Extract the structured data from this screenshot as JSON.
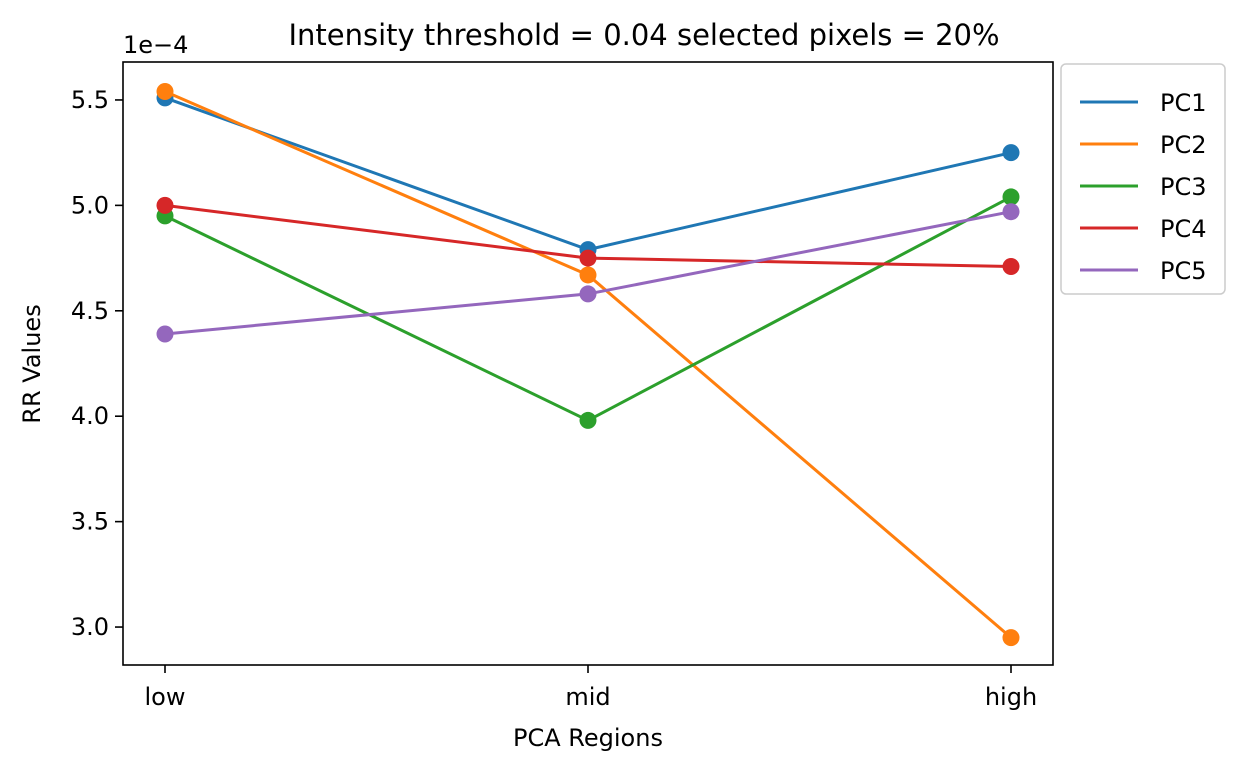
{
  "chart_data": {
    "type": "line",
    "title": "Intensity threshold = 0.04 selected pixels = 20%",
    "xlabel": "PCA Regions",
    "ylabel": "RR Values",
    "y_offset_label": "1e−4",
    "categories": [
      "low",
      "mid",
      "high"
    ],
    "ylim": [
      2.82,
      5.68
    ],
    "yticks": [
      3.0,
      3.5,
      4.0,
      4.5,
      5.0,
      5.5
    ],
    "ytick_labels": [
      "3.0",
      "3.5",
      "4.0",
      "4.5",
      "5.0",
      "5.5"
    ],
    "grid": false,
    "legend_position": "outside-upper-right",
    "markers": true,
    "series": [
      {
        "name": "PC1",
        "color": "#1f77b4",
        "values": [
          5.51,
          4.79,
          5.25
        ]
      },
      {
        "name": "PC2",
        "color": "#ff7f0e",
        "values": [
          5.54,
          4.67,
          2.95
        ]
      },
      {
        "name": "PC3",
        "color": "#2ca02c",
        "values": [
          4.95,
          3.98,
          5.04
        ]
      },
      {
        "name": "PC4",
        "color": "#d62728",
        "values": [
          5.0,
          4.75,
          4.71
        ]
      },
      {
        "name": "PC5",
        "color": "#9467bd",
        "values": [
          4.39,
          4.58,
          4.97
        ]
      }
    ]
  }
}
